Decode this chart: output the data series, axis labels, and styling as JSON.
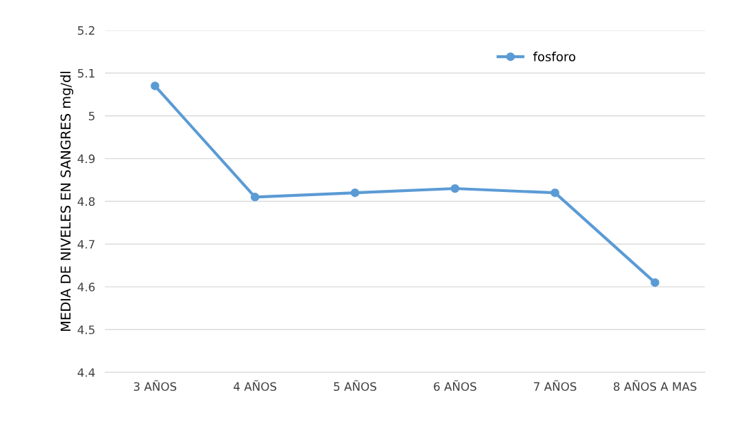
{
  "chart_data": {
    "type": "line",
    "ylabel": "MEDIA DE NIVELES EN SANGRES mg/dl",
    "categories": [
      "3 AÑOS",
      "4 AÑOS",
      "5 AÑOS",
      "6 AÑOS",
      "7 AÑOS",
      "8 AÑOS A MAS"
    ],
    "series": [
      {
        "name": "fosforo",
        "color": "#5b9bd5",
        "values": [
          5.07,
          4.81,
          4.82,
          4.83,
          4.82,
          4.61
        ]
      }
    ],
    "ylim": [
      4.4,
      5.2
    ],
    "yticks": [
      4.4,
      4.5,
      4.6,
      4.7,
      4.8,
      4.9,
      5,
      5.1,
      5.2
    ],
    "grid": "y",
    "legend": "top",
    "marker": "circle",
    "line_style": "solid"
  }
}
